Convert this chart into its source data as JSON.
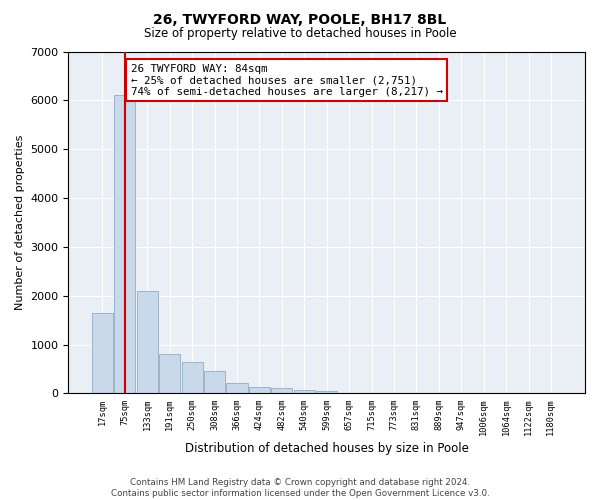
{
  "title1": "26, TWYFORD WAY, POOLE, BH17 8BL",
  "title2": "Size of property relative to detached houses in Poole",
  "xlabel": "Distribution of detached houses by size in Poole",
  "ylabel": "Number of detached properties",
  "footnote1": "Contains HM Land Registry data © Crown copyright and database right 2024.",
  "footnote2": "Contains public sector information licensed under the Open Government Licence v3.0.",
  "annotation_line1": "26 TWYFORD WAY: 84sqm",
  "annotation_line2": "← 25% of detached houses are smaller (2,751)",
  "annotation_line3": "74% of semi-detached houses are larger (8,217) →",
  "bar_color": "#c9d9ea",
  "bar_edge_color": "#9ab4cc",
  "vline_color": "#cc0000",
  "vline_x": 75,
  "bar_centers": [
    17,
    75,
    133,
    191,
    250,
    308,
    366,
    424,
    482,
    540,
    599,
    657,
    715,
    773,
    831,
    889,
    947,
    1006,
    1064,
    1122,
    1180
  ],
  "bar_labels": [
    "17sqm",
    "75sqm",
    "133sqm",
    "191sqm",
    "250sqm",
    "308sqm",
    "366sqm",
    "424sqm",
    "482sqm",
    "540sqm",
    "599sqm",
    "657sqm",
    "715sqm",
    "773sqm",
    "831sqm",
    "889sqm",
    "947sqm",
    "1006sqm",
    "1064sqm",
    "1122sqm",
    "1180sqm"
  ],
  "values": [
    1650,
    6100,
    2100,
    800,
    650,
    450,
    220,
    130,
    110,
    75,
    50,
    18,
    0,
    0,
    0,
    0,
    0,
    0,
    0,
    0,
    0
  ],
  "ylim": [
    0,
    7000
  ],
  "yticks": [
    0,
    1000,
    2000,
    3000,
    4000,
    5000,
    6000,
    7000
  ],
  "bin_width": 55,
  "background_color": "#ffffff",
  "plot_bg_color": "#eaeef5"
}
